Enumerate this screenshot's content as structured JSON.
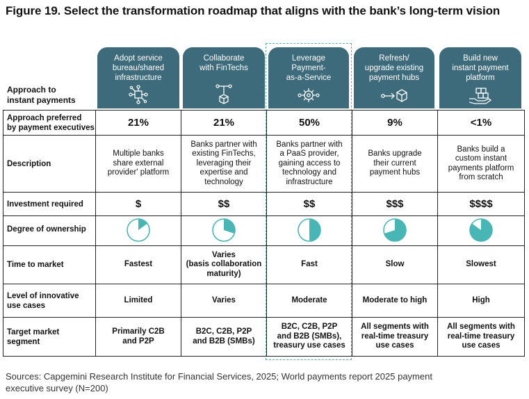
{
  "title": "Figure 19. Select the transformation roadmap that aligns with the bank’s long-term vision",
  "approach_label_l1": "Approach to",
  "approach_label_l2": "instant payments",
  "colors": {
    "header": "#3d6b7b",
    "accent": "#49b6b6",
    "highlight_border": "#5fae9e"
  },
  "columns": [
    {
      "l1": "Adopt service",
      "l2": "bureau/shared",
      "l3": "infrastructure",
      "icon": "network-nodes-icon"
    },
    {
      "l1": "Collaborate",
      "l2": "with FinTechs",
      "l3": "",
      "icon": "node-cube-icon"
    },
    {
      "l1": "Leverage",
      "l2": "Payment-",
      "l3": "as-a-Service",
      "icon": "gear-network-icon"
    },
    {
      "l1": "Refresh/",
      "l2": "upgrade existing",
      "l3": "payment hubs",
      "icon": "arrow-cube-icon"
    },
    {
      "l1": "Build new",
      "l2": "instant payment",
      "l3": "platform",
      "icon": "hand-blocks-icon"
    }
  ],
  "rows": {
    "preferred": {
      "l1": "Approach preferred",
      "l2": "by payment executives",
      "values": [
        "21%",
        "21%",
        "50%",
        "9%",
        "<1%"
      ]
    },
    "description": {
      "label": "Description",
      "values": [
        [
          "Multiple banks",
          "share external",
          "provider' platform"
        ],
        [
          "Banks partner with",
          "existing FinTechs,",
          "leveraging their",
          "expertise and",
          "technology"
        ],
        [
          "Banks partner with",
          "a PaaS provider,",
          "gaining access to",
          "technology and",
          "infrastructure"
        ],
        [
          "Banks upgrade",
          "their current",
          "payment hubs"
        ],
        [
          "Banks build a",
          "custom instant",
          "payments platform",
          "from scratch"
        ]
      ]
    },
    "investment": {
      "label": "Investment required",
      "values": [
        "$",
        "$$",
        "$$",
        "$$$",
        "$$$$"
      ]
    },
    "ownership": {
      "label": "Degree of ownership",
      "fractions": [
        0.15,
        0.3,
        0.5,
        0.7,
        0.85
      ]
    },
    "time": {
      "label": "Time to market",
      "values": [
        [
          "Fastest"
        ],
        [
          "Varies",
          "(basis collaboration",
          "maturity)"
        ],
        [
          "Fast"
        ],
        [
          "Slow"
        ],
        [
          "Slowest"
        ]
      ]
    },
    "innovation": {
      "l1": "Level of innovative",
      "l2": "use cases",
      "values": [
        "Limited",
        "Varies",
        "Moderate",
        "Moderate to high",
        "High"
      ]
    },
    "target": {
      "l1": "Target market",
      "l2": "segment",
      "values": [
        [
          "Primarily C2B",
          "and P2P"
        ],
        [
          "B2C, C2B, P2P",
          "and B2B (SMBs)"
        ],
        [
          "B2C, C2B, P2P",
          "and B2B (SMBs),",
          "treasury use cases"
        ],
        [
          "All segments with",
          "real-time treasury",
          "use cases"
        ],
        [
          "All segments with",
          "real-time treasury",
          "use cases"
        ]
      ]
    }
  },
  "sources_l1": "Sources: Capgemini Research Institute for Financial Services, 2025; World payments report 2025 payment",
  "sources_l2": "executive survey (N=200)"
}
